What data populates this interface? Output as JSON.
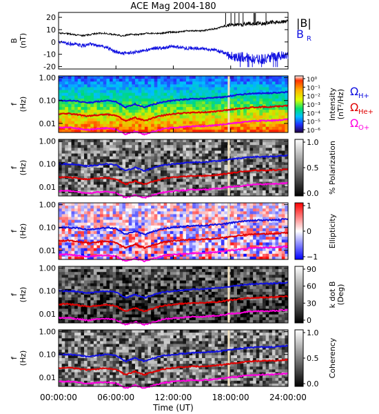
{
  "chart_data": {
    "type": "multi-panel",
    "title": "ACE Mag 2004-180",
    "xlabel": "Time (UT)",
    "x_ticks": [
      "00:00:00",
      "06:00:00",
      "12:00:00",
      "18:00:00",
      "24:00:00"
    ],
    "x_range_hours": [
      0,
      24
    ],
    "colors": {
      "black": "#000000",
      "blue": "#1010e0",
      "red": "#e00000",
      "magenta": "#ff00e0",
      "gap": "#f2e2c0"
    },
    "panels": [
      {
        "kind": "line",
        "ylabel": "B",
        "yunit": "(nT)",
        "ylim": [
          -22,
          24
        ],
        "yticks": [
          -20,
          -10,
          0,
          10,
          20
        ],
        "legend": [
          "|B|",
          "B",
          "R"
        ],
        "series": [
          {
            "key": "abs_b",
            "color": "#000000",
            "values": [
              7,
              7,
              6,
              5,
              6,
              7,
              7,
              6,
              5,
              6,
              6,
              7,
              7,
              7,
              8,
              8,
              9,
              9,
              9,
              10,
              11,
              13,
              14,
              14,
              15,
              15,
              15,
              16,
              16,
              17
            ]
          },
          {
            "key": "br",
            "color": "#1010e0",
            "values": [
              0,
              -1,
              -2,
              -3,
              -2,
              -3,
              -4,
              -8,
              -9,
              -9,
              -8,
              -7,
              -5,
              -5,
              -4,
              -4,
              -5,
              -5,
              -5,
              -6,
              -7,
              -9,
              -12,
              -12,
              -13,
              -14,
              -14,
              -12,
              -11,
              -10
            ]
          }
        ]
      },
      {
        "kind": "spectrogram",
        "ylabel": "f",
        "yunit": "(Hz)",
        "ytick_labels": [
          "1.00",
          "0.10",
          "0.01"
        ],
        "colorbar": {
          "label": "Intensity",
          "unit": "(nT²/Hz)",
          "ticks": [
            "10⁰",
            "10⁻¹",
            "10⁻²",
            "10⁻³",
            "10⁻⁴",
            "10⁻⁵",
            "10⁻⁶"
          ]
        },
        "legend": [
          [
            "Ω",
            "H+"
          ],
          [
            "Ω",
            "He+"
          ],
          [
            "Ω",
            "O+"
          ]
        ]
      },
      {
        "kind": "spectrogram",
        "ylabel": "f",
        "yunit": "(Hz)",
        "ytick_labels": [
          "1.00",
          "0.10",
          "0.01"
        ],
        "colorbar": {
          "label": "% Polarization",
          "ticks": [
            "1.0",
            "0.5",
            "0.0"
          ]
        }
      },
      {
        "kind": "spectrogram",
        "ylabel": "f",
        "yunit": "(Hz)",
        "ytick_labels": [
          "1.00",
          "0.10",
          "0.01"
        ],
        "colorbar": {
          "label": "Ellipticity",
          "ticks": [
            "1",
            "0",
            "−1"
          ]
        }
      },
      {
        "kind": "spectrogram",
        "ylabel": "f",
        "yunit": "(Hz)",
        "ytick_labels": [
          "1.00",
          "0.10",
          "0.01"
        ],
        "colorbar": {
          "label": "k dot B",
          "unit": "(Deg)",
          "ticks": [
            "90",
            "60",
            "30",
            "0"
          ]
        }
      },
      {
        "kind": "spectrogram",
        "ylabel": "f",
        "yunit": "(Hz)",
        "ytick_labels": [
          "1.00",
          "0.10",
          "0.01"
        ],
        "colorbar": {
          "label": "Coherency",
          "ticks": [
            "1.0",
            "0.5",
            "0.0"
          ]
        }
      }
    ],
    "gyrofrequencies_hz": {
      "hours": [
        0,
        1,
        2,
        3,
        4,
        5,
        6,
        7,
        8,
        9,
        10,
        11,
        12,
        13,
        14,
        15,
        16,
        17,
        18,
        19,
        20,
        21,
        22,
        23,
        24
      ],
      "H+": [
        0.1,
        0.1,
        0.095,
        0.08,
        0.09,
        0.1,
        0.09,
        0.05,
        0.07,
        0.05,
        0.07,
        0.09,
        0.1,
        0.11,
        0.12,
        0.12,
        0.13,
        0.14,
        0.16,
        0.18,
        0.2,
        0.21,
        0.21,
        0.22,
        0.24
      ],
      "He+": [
        0.026,
        0.027,
        0.024,
        0.021,
        0.023,
        0.025,
        0.022,
        0.013,
        0.018,
        0.013,
        0.018,
        0.023,
        0.026,
        0.028,
        0.03,
        0.03,
        0.032,
        0.035,
        0.04,
        0.045,
        0.05,
        0.052,
        0.053,
        0.055,
        0.06
      ],
      "O+": [
        0.0065,
        0.0067,
        0.006,
        0.0052,
        0.0058,
        0.0062,
        0.0055,
        0.0033,
        0.0045,
        0.0033,
        0.0045,
        0.0058,
        0.0065,
        0.007,
        0.0075,
        0.0075,
        0.008,
        0.0088,
        0.01,
        0.011,
        0.0125,
        0.013,
        0.0132,
        0.0138,
        0.015
      ]
    },
    "data_gap_hour": 17.8
  }
}
